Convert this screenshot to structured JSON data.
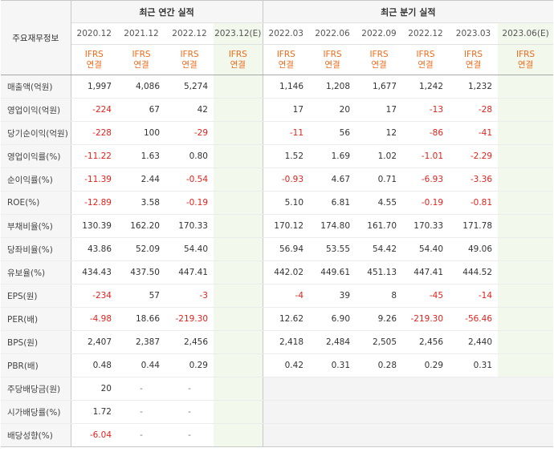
{
  "header": {
    "corner": "주요재무정보",
    "annual_title": "최근 연간 실적",
    "quarter_title": "최근 분기 실적",
    "annual_periods": [
      "2020.12",
      "2021.12",
      "2022.12",
      "2023.12(E)"
    ],
    "quarter_periods": [
      "2022.03",
      "2022.06",
      "2022.09",
      "2022.12",
      "2023.03",
      "2023.06(E)"
    ],
    "basis_line1": "IFRS",
    "basis_line2": "연결"
  },
  "rows": [
    {
      "label": "매출액(억원)",
      "annual": [
        "1,997",
        "4,086",
        "5,274",
        ""
      ],
      "quarter": [
        "1,146",
        "1,208",
        "1,677",
        "1,242",
        "1,232",
        ""
      ]
    },
    {
      "label": "영업이익(억원)",
      "annual": [
        "-224",
        "67",
        "42",
        ""
      ],
      "quarter": [
        "17",
        "20",
        "17",
        "-13",
        "-28",
        ""
      ]
    },
    {
      "label": "당기순이익(억원)",
      "annual": [
        "-228",
        "100",
        "-29",
        ""
      ],
      "quarter": [
        "-11",
        "56",
        "12",
        "-86",
        "-41",
        ""
      ]
    },
    {
      "label": "영업이익률(%)",
      "annual": [
        "-11.22",
        "1.63",
        "0.80",
        ""
      ],
      "quarter": [
        "1.52",
        "1.69",
        "1.02",
        "-1.01",
        "-2.29",
        ""
      ]
    },
    {
      "label": "순이익률(%)",
      "annual": [
        "-11.39",
        "2.44",
        "-0.54",
        ""
      ],
      "quarter": [
        "-0.93",
        "4.67",
        "0.71",
        "-6.93",
        "-3.36",
        ""
      ]
    },
    {
      "label": "ROE(%)",
      "annual": [
        "-12.89",
        "3.58",
        "-0.19",
        ""
      ],
      "quarter": [
        "5.10",
        "6.81",
        "4.55",
        "-0.19",
        "-0.81",
        ""
      ]
    },
    {
      "label": "부채비율(%)",
      "annual": [
        "130.39",
        "162.20",
        "170.33",
        ""
      ],
      "quarter": [
        "170.12",
        "174.80",
        "161.70",
        "170.33",
        "171.78",
        ""
      ]
    },
    {
      "label": "당좌비율(%)",
      "annual": [
        "43.86",
        "52.09",
        "54.40",
        ""
      ],
      "quarter": [
        "56.94",
        "53.55",
        "54.42",
        "54.40",
        "49.06",
        ""
      ]
    },
    {
      "label": "유보율(%)",
      "annual": [
        "434.43",
        "437.50",
        "447.41",
        ""
      ],
      "quarter": [
        "442.02",
        "449.61",
        "451.13",
        "447.41",
        "444.52",
        ""
      ]
    },
    {
      "label": "EPS(원)",
      "annual": [
        "-234",
        "57",
        "-3",
        ""
      ],
      "quarter": [
        "-4",
        "39",
        "8",
        "-45",
        "-14",
        ""
      ]
    },
    {
      "label": "PER(배)",
      "annual": [
        "-4.98",
        "18.66",
        "-219.30",
        ""
      ],
      "quarter": [
        "12.62",
        "6.90",
        "9.26",
        "-219.30",
        "-56.46",
        ""
      ]
    },
    {
      "label": "BPS(원)",
      "annual": [
        "2,407",
        "2,387",
        "2,456",
        ""
      ],
      "quarter": [
        "2,418",
        "2,484",
        "2,505",
        "2,456",
        "2,440",
        ""
      ]
    },
    {
      "label": "PBR(배)",
      "annual": [
        "0.48",
        "0.44",
        "0.29",
        ""
      ],
      "quarter": [
        "0.42",
        "0.31",
        "0.28",
        "0.29",
        "0.31",
        ""
      ]
    },
    {
      "label": "주당배당금(원)",
      "annual": [
        "20",
        "-",
        "-",
        ""
      ],
      "quarter": null
    },
    {
      "label": "시가배당률(%)",
      "annual": [
        "1.72",
        "-",
        "-",
        ""
      ],
      "quarter": null
    },
    {
      "label": "배당성향(%)",
      "annual": [
        "-6.04",
        "-",
        "-",
        ""
      ],
      "quarter": null
    }
  ],
  "group_starts": [
    3,
    6,
    9,
    13
  ]
}
